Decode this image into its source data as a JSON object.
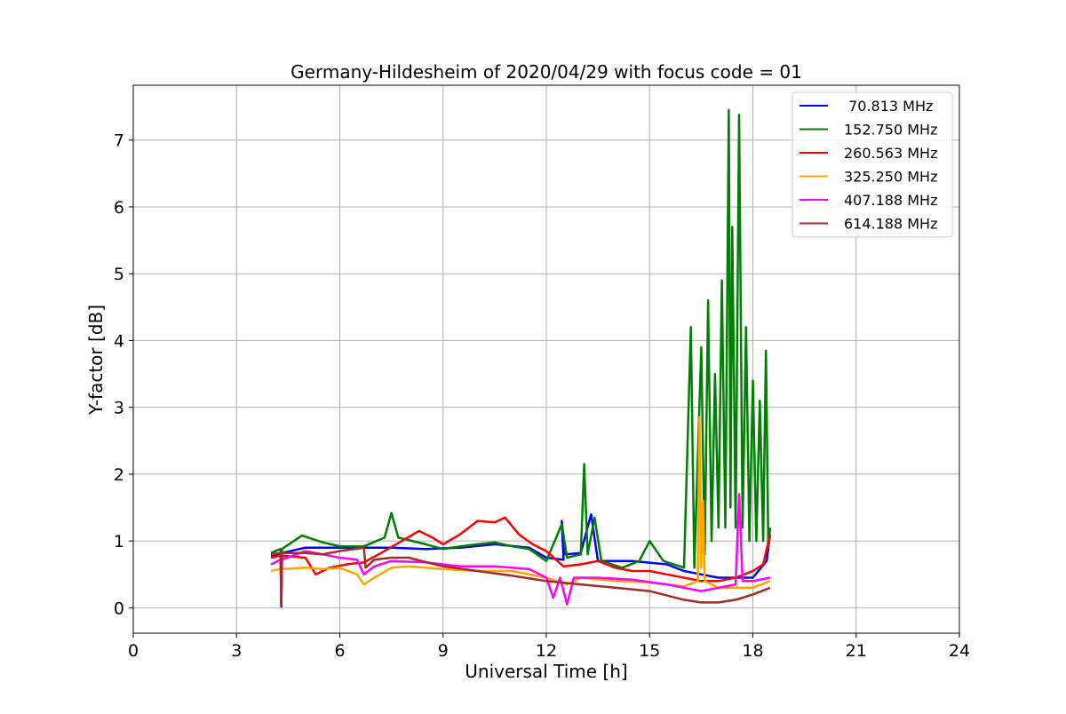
{
  "chart_data": {
    "type": "line",
    "title": "Germany-Hildesheim of 2020/04/29 with focus code = 01",
    "xlabel": "Universal Time [h]",
    "ylabel": "Y-factor [dB]",
    "xlim": [
      0,
      24
    ],
    "ylim": [
      -0.38,
      7.82
    ],
    "xticks": [
      "0",
      "3",
      "6",
      "9",
      "12",
      "15",
      "18",
      "21",
      "24"
    ],
    "yticks": [
      "0",
      "1",
      "2",
      "3",
      "4",
      "5",
      "6",
      "7"
    ],
    "grid": true,
    "legend_position": "top-right",
    "series": [
      {
        "name": " 70.813 MHz",
        "color": "#0000ff",
        "points": [
          [
            4.0,
            0.78
          ],
          [
            4.28,
            0.8
          ],
          [
            4.3,
            0.02
          ],
          [
            4.32,
            0.82
          ],
          [
            5.0,
            0.9
          ],
          [
            6.0,
            0.9
          ],
          [
            6.7,
            0.9
          ],
          [
            7.5,
            0.9
          ],
          [
            8.5,
            0.88
          ],
          [
            9.5,
            0.9
          ],
          [
            10.5,
            0.95
          ],
          [
            11.5,
            0.9
          ],
          [
            12.0,
            0.75
          ],
          [
            12.5,
            0.72
          ],
          [
            12.45,
            1.3
          ],
          [
            12.55,
            0.8
          ],
          [
            13.0,
            0.82
          ],
          [
            13.3,
            1.4
          ],
          [
            13.5,
            0.7
          ],
          [
            14.5,
            0.7
          ],
          [
            15.5,
            0.65
          ],
          [
            16.0,
            0.55
          ],
          [
            16.5,
            0.5
          ],
          [
            17.0,
            0.45
          ],
          [
            17.5,
            0.45
          ],
          [
            18.0,
            0.45
          ],
          [
            18.4,
            0.7
          ],
          [
            18.5,
            1.1
          ]
        ]
      },
      {
        "name": "152.750 MHz",
        "color": "#008000",
        "points": [
          [
            4.0,
            0.82
          ],
          [
            4.28,
            0.88
          ],
          [
            4.3,
            0.05
          ],
          [
            4.32,
            0.88
          ],
          [
            4.9,
            1.08
          ],
          [
            5.5,
            0.98
          ],
          [
            6.0,
            0.92
          ],
          [
            6.7,
            0.92
          ],
          [
            7.3,
            1.05
          ],
          [
            7.5,
            1.42
          ],
          [
            7.7,
            1.05
          ],
          [
            8.5,
            0.95
          ],
          [
            9.0,
            0.88
          ],
          [
            9.5,
            0.92
          ],
          [
            10.0,
            0.95
          ],
          [
            10.5,
            0.98
          ],
          [
            11.0,
            0.92
          ],
          [
            11.5,
            0.88
          ],
          [
            12.0,
            0.7
          ],
          [
            12.45,
            1.25
          ],
          [
            12.6,
            0.75
          ],
          [
            13.0,
            0.8
          ],
          [
            13.1,
            2.15
          ],
          [
            13.2,
            0.8
          ],
          [
            13.4,
            1.35
          ],
          [
            13.6,
            0.7
          ],
          [
            14.2,
            0.6
          ],
          [
            14.7,
            0.7
          ],
          [
            15.0,
            1.0
          ],
          [
            15.4,
            0.7
          ],
          [
            16.0,
            0.6
          ],
          [
            16.2,
            4.2
          ],
          [
            16.3,
            0.6
          ],
          [
            16.5,
            3.9
          ],
          [
            16.6,
            0.8
          ],
          [
            16.7,
            4.6
          ],
          [
            16.8,
            1.0
          ],
          [
            16.9,
            3.5
          ],
          [
            17.0,
            1.2
          ],
          [
            17.1,
            4.9
          ],
          [
            17.2,
            1.2
          ],
          [
            17.3,
            7.45
          ],
          [
            17.35,
            1.5
          ],
          [
            17.4,
            5.7
          ],
          [
            17.5,
            1.2
          ],
          [
            17.6,
            7.38
          ],
          [
            17.7,
            1.2
          ],
          [
            17.8,
            4.2
          ],
          [
            17.9,
            1.0
          ],
          [
            18.0,
            3.4
          ],
          [
            18.1,
            1.0
          ],
          [
            18.2,
            3.1
          ],
          [
            18.3,
            1.0
          ],
          [
            18.38,
            3.85
          ],
          [
            18.45,
            0.9
          ],
          [
            18.5,
            1.2
          ]
        ]
      },
      {
        "name": "260.563 MHz",
        "color": "#ff0000",
        "points": [
          [
            4.0,
            0.75
          ],
          [
            4.28,
            0.78
          ],
          [
            4.3,
            0.05
          ],
          [
            4.32,
            0.78
          ],
          [
            5.0,
            0.75
          ],
          [
            5.3,
            0.5
          ],
          [
            5.7,
            0.6
          ],
          [
            6.2,
            0.65
          ],
          [
            6.7,
            0.68
          ],
          [
            7.2,
            0.82
          ],
          [
            7.8,
            1.0
          ],
          [
            8.3,
            1.15
          ],
          [
            8.7,
            1.05
          ],
          [
            9.0,
            0.95
          ],
          [
            9.5,
            1.1
          ],
          [
            10.0,
            1.3
          ],
          [
            10.5,
            1.28
          ],
          [
            10.8,
            1.35
          ],
          [
            11.2,
            1.1
          ],
          [
            11.6,
            0.95
          ],
          [
            12.0,
            0.85
          ],
          [
            12.5,
            0.62
          ],
          [
            13.0,
            0.65
          ],
          [
            13.5,
            0.7
          ],
          [
            14.0,
            0.6
          ],
          [
            14.5,
            0.55
          ],
          [
            15.0,
            0.55
          ],
          [
            15.5,
            0.5
          ],
          [
            16.0,
            0.45
          ],
          [
            16.5,
            0.4
          ],
          [
            17.0,
            0.4
          ],
          [
            17.5,
            0.45
          ],
          [
            18.0,
            0.55
          ],
          [
            18.3,
            0.65
          ],
          [
            18.5,
            1.1
          ]
        ]
      },
      {
        "name": "325.250 MHz",
        "color": "#ffa500",
        "points": [
          [
            4.0,
            0.55
          ],
          [
            4.28,
            0.58
          ],
          [
            4.3,
            0.1
          ],
          [
            4.32,
            0.58
          ],
          [
            5.0,
            0.6
          ],
          [
            5.5,
            0.58
          ],
          [
            6.0,
            0.6
          ],
          [
            6.5,
            0.5
          ],
          [
            6.7,
            0.35
          ],
          [
            7.0,
            0.45
          ],
          [
            7.5,
            0.6
          ],
          [
            8.0,
            0.62
          ],
          [
            9.0,
            0.58
          ],
          [
            10.0,
            0.55
          ],
          [
            11.0,
            0.55
          ],
          [
            12.0,
            0.45
          ],
          [
            12.6,
            0.35
          ],
          [
            13.0,
            0.45
          ],
          [
            14.0,
            0.4
          ],
          [
            15.0,
            0.38
          ],
          [
            16.0,
            0.32
          ],
          [
            16.4,
            0.4
          ],
          [
            16.45,
            2.85
          ],
          [
            16.5,
            0.6
          ],
          [
            16.55,
            1.6
          ],
          [
            16.6,
            0.4
          ],
          [
            17.0,
            0.3
          ],
          [
            17.5,
            0.3
          ],
          [
            18.0,
            0.3
          ],
          [
            18.5,
            0.4
          ]
        ]
      },
      {
        "name": "407.188 MHz",
        "color": "#ff00ff",
        "points": [
          [
            4.0,
            0.65
          ],
          [
            4.28,
            0.72
          ],
          [
            4.3,
            0.05
          ],
          [
            4.32,
            0.72
          ],
          [
            5.0,
            0.85
          ],
          [
            5.5,
            0.8
          ],
          [
            6.0,
            0.75
          ],
          [
            6.5,
            0.72
          ],
          [
            6.7,
            0.5
          ],
          [
            7.0,
            0.62
          ],
          [
            7.5,
            0.7
          ],
          [
            8.5,
            0.68
          ],
          [
            9.5,
            0.62
          ],
          [
            10.5,
            0.62
          ],
          [
            11.5,
            0.58
          ],
          [
            12.0,
            0.45
          ],
          [
            12.2,
            0.15
          ],
          [
            12.4,
            0.45
          ],
          [
            12.6,
            0.05
          ],
          [
            12.8,
            0.45
          ],
          [
            13.5,
            0.45
          ],
          [
            14.5,
            0.42
          ],
          [
            15.5,
            0.35
          ],
          [
            16.0,
            0.3
          ],
          [
            16.5,
            0.25
          ],
          [
            17.0,
            0.3
          ],
          [
            17.5,
            0.35
          ],
          [
            17.6,
            1.7
          ],
          [
            17.7,
            0.4
          ],
          [
            18.0,
            0.4
          ],
          [
            18.5,
            0.45
          ]
        ]
      },
      {
        "name": "614.188 MHz",
        "color": "#a52a2a",
        "points": [
          [
            4.0,
            0.8
          ],
          [
            4.28,
            0.82
          ],
          [
            4.3,
            0.05
          ],
          [
            4.32,
            0.82
          ],
          [
            5.0,
            0.82
          ],
          [
            5.5,
            0.8
          ],
          [
            6.0,
            0.85
          ],
          [
            6.7,
            0.9
          ],
          [
            6.75,
            0.6
          ],
          [
            7.0,
            0.72
          ],
          [
            7.5,
            0.75
          ],
          [
            8.0,
            0.75
          ],
          [
            9.0,
            0.62
          ],
          [
            10.0,
            0.55
          ],
          [
            11.0,
            0.48
          ],
          [
            12.0,
            0.4
          ],
          [
            13.0,
            0.35
          ],
          [
            14.0,
            0.3
          ],
          [
            15.0,
            0.25
          ],
          [
            16.0,
            0.12
          ],
          [
            16.5,
            0.08
          ],
          [
            17.0,
            0.08
          ],
          [
            17.5,
            0.12
          ],
          [
            18.0,
            0.2
          ],
          [
            18.5,
            0.3
          ]
        ]
      }
    ]
  }
}
